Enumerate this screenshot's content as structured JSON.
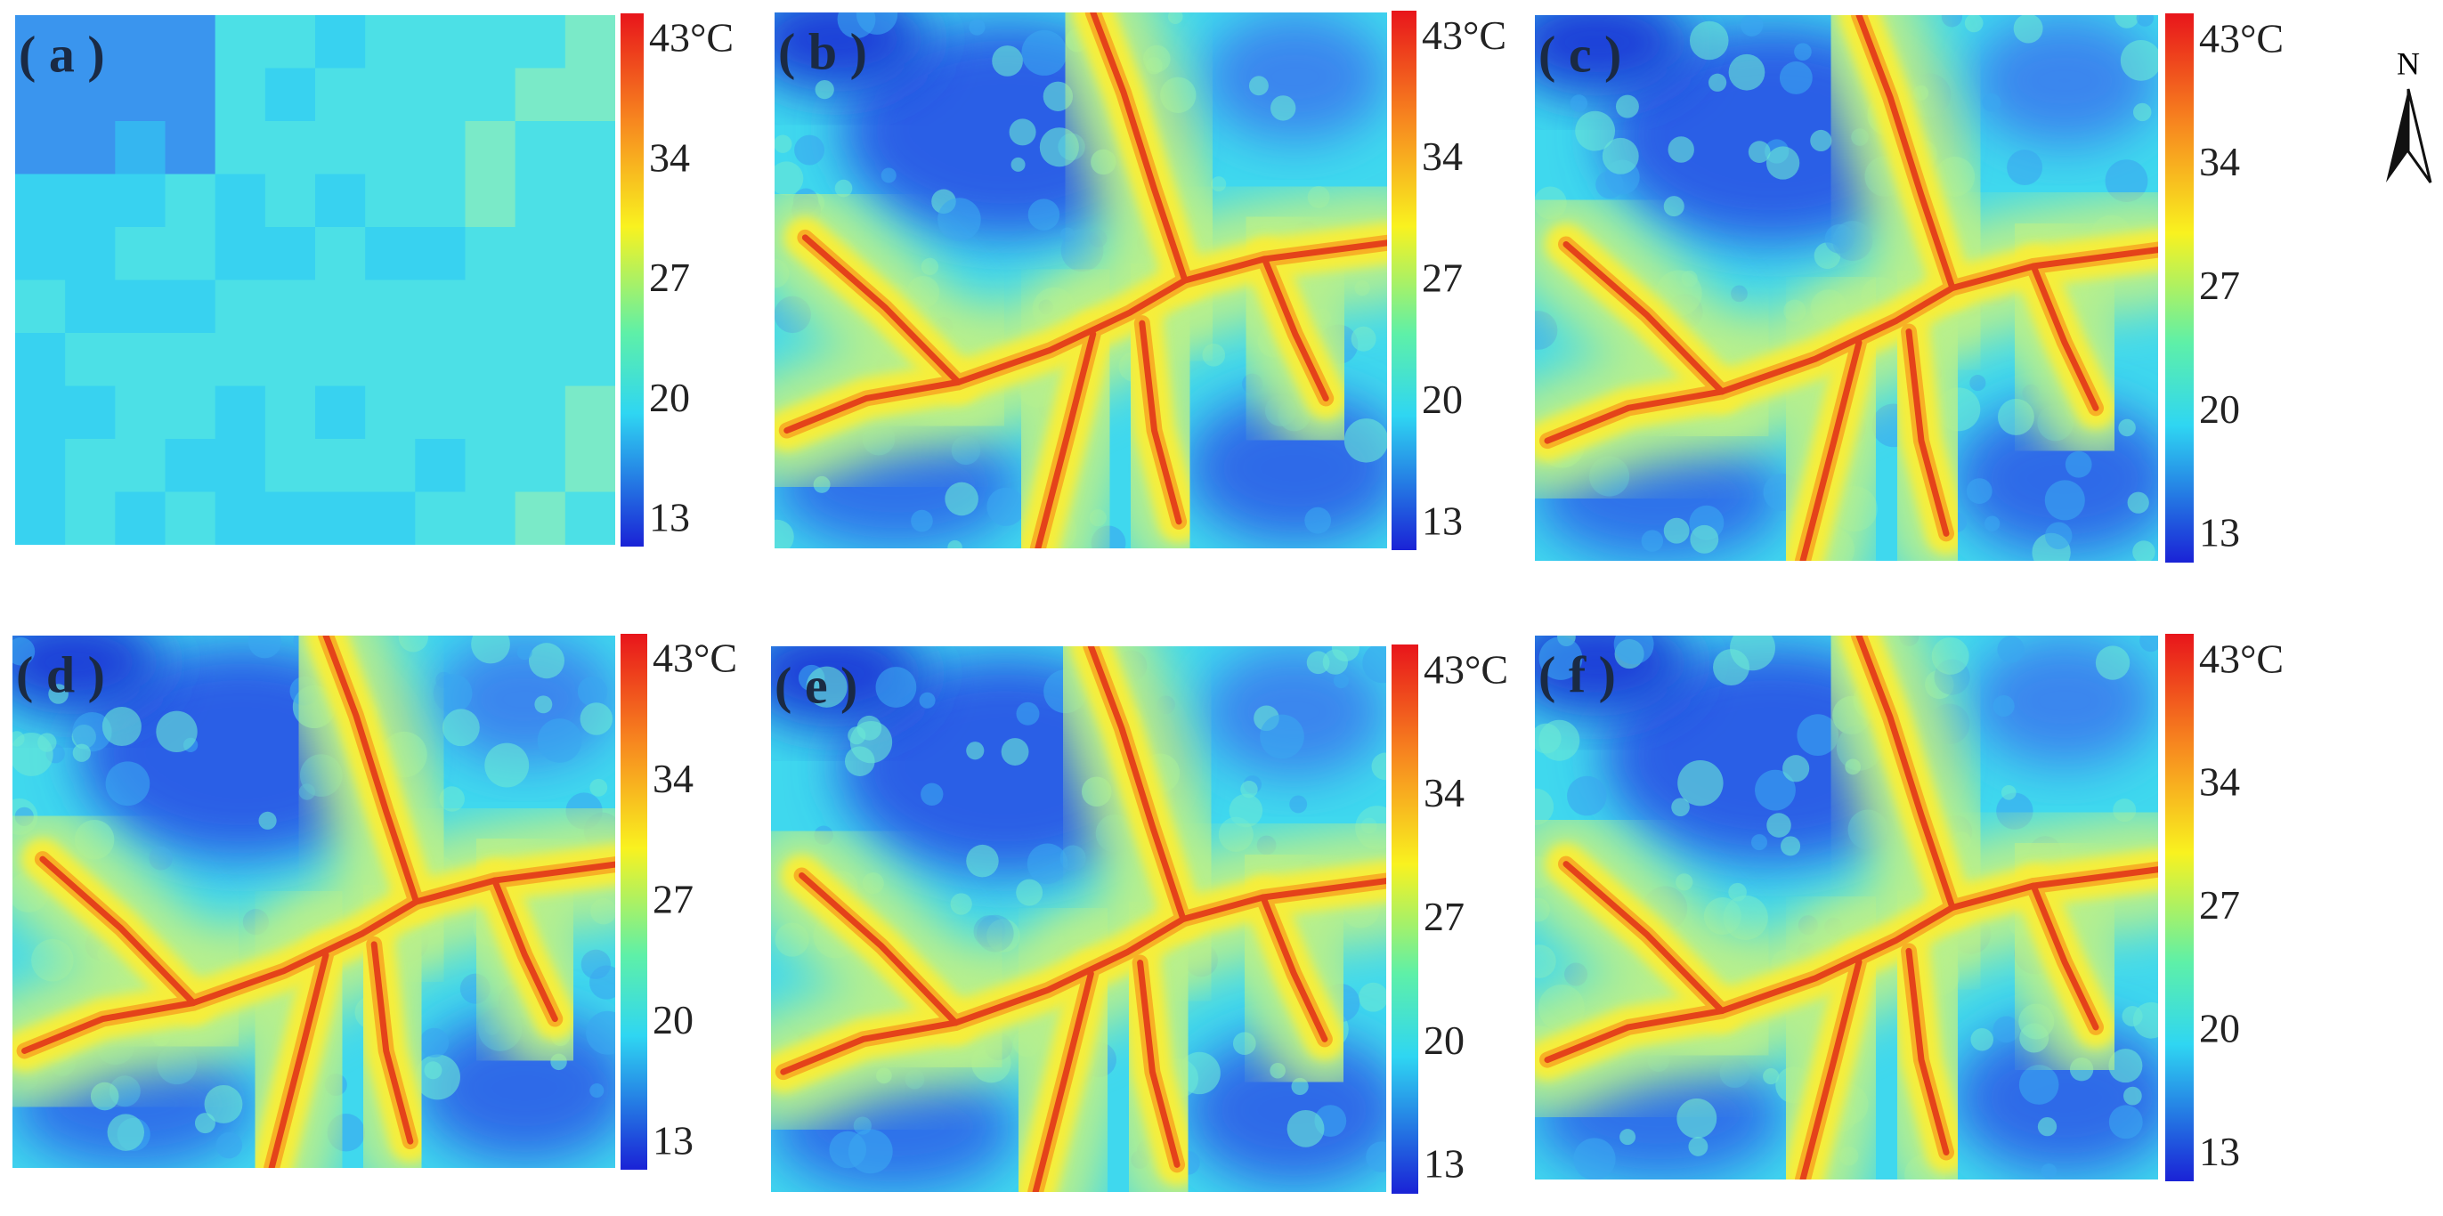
{
  "panels": [
    {
      "label": "( a )"
    },
    {
      "label": "( b )"
    },
    {
      "label": "( c )"
    },
    {
      "label": "( d )"
    },
    {
      "label": "( e )"
    },
    {
      "label": "( f )"
    }
  ],
  "colorbar": {
    "ticks": [
      "43°C",
      "34",
      "27",
      "20",
      "13"
    ]
  },
  "north_arrow": {
    "label": "N"
  }
}
